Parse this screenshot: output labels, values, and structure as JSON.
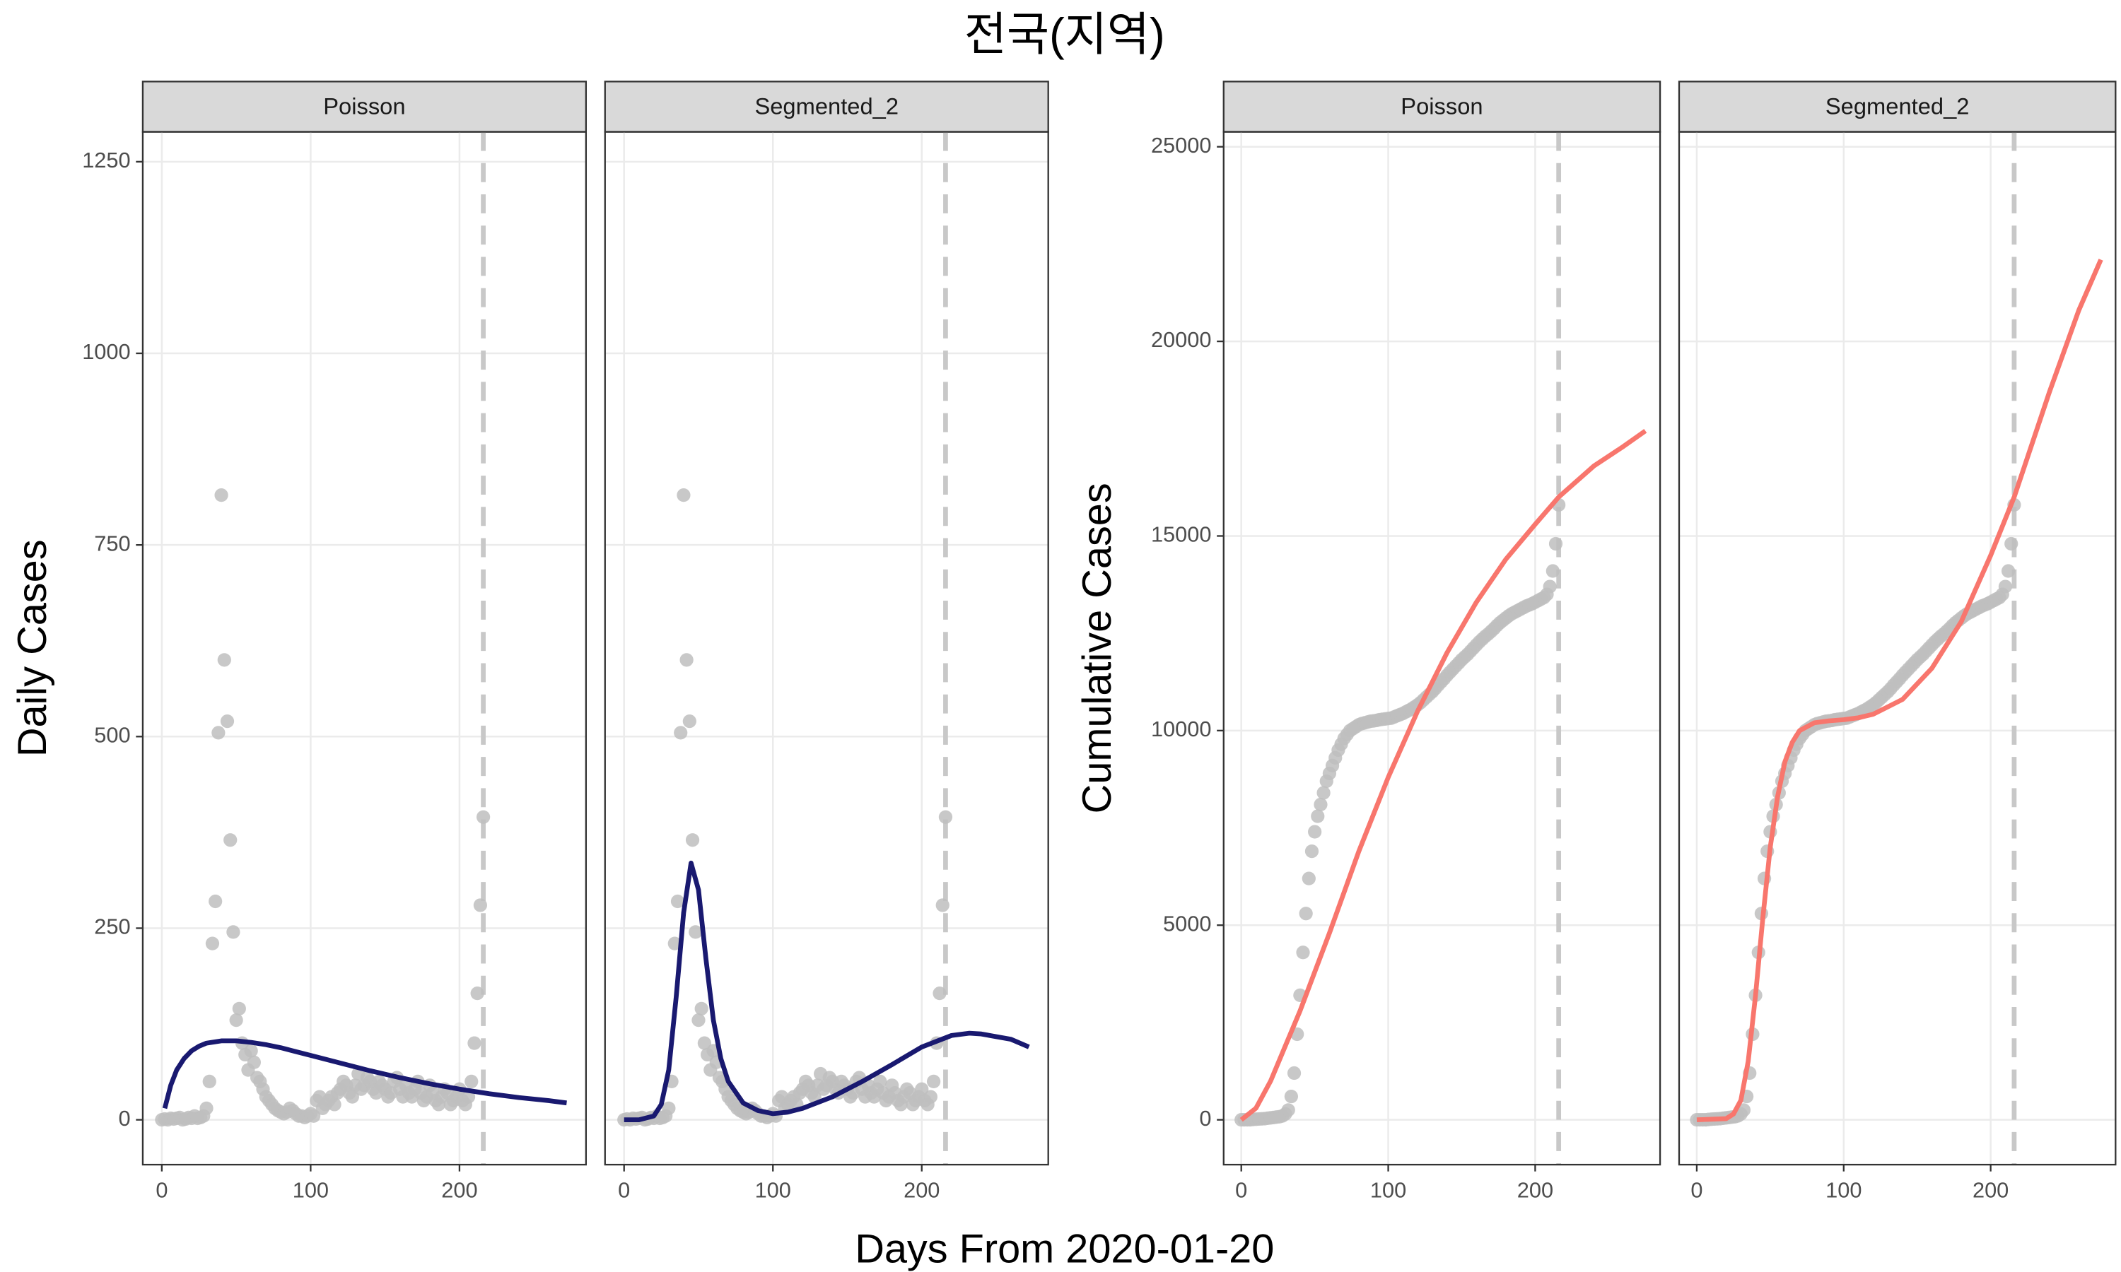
{
  "title": "전국(지역)",
  "xlabel": "Days From 2020-01-20",
  "chart_data": [
    {
      "type": "scatter",
      "strip": "Poisson",
      "ylabel": "Daily Cases",
      "xlim": [
        -12.8,
        285
      ],
      "ylim": [
        -58.5,
        1289
      ],
      "xticks": [
        0,
        100,
        200
      ],
      "yticks": [
        0,
        250,
        500,
        750,
        1000,
        1250
      ],
      "grid": true,
      "vline": 216,
      "points": {
        "color": "#bebebe",
        "x": [
          0,
          2,
          4,
          6,
          8,
          10,
          12,
          14,
          16,
          18,
          20,
          22,
          24,
          26,
          28,
          30,
          32,
          34,
          36,
          38,
          40,
          42,
          44,
          46,
          48,
          50,
          52,
          54,
          56,
          58,
          60,
          62,
          64,
          66,
          68,
          70,
          72,
          74,
          76,
          78,
          80,
          82,
          84,
          86,
          88,
          90,
          92,
          94,
          96,
          98,
          100,
          102,
          104,
          106,
          108,
          110,
          112,
          114,
          116,
          118,
          120,
          122,
          124,
          126,
          128,
          130,
          132,
          134,
          136,
          138,
          140,
          142,
          144,
          146,
          148,
          150,
          152,
          154,
          156,
          158,
          160,
          162,
          164,
          166,
          168,
          170,
          172,
          174,
          176,
          178,
          180,
          182,
          184,
          186,
          188,
          190,
          192,
          194,
          196,
          198,
          200,
          202,
          204,
          206,
          208,
          210,
          212,
          214,
          216
        ],
        "values": [
          0,
          1,
          0,
          2,
          1,
          2,
          3,
          0,
          1,
          3,
          2,
          5,
          2,
          3,
          5,
          15,
          50,
          230,
          285,
          505,
          815,
          600,
          520,
          365,
          245,
          130,
          145,
          100,
          85,
          65,
          90,
          75,
          55,
          50,
          40,
          30,
          25,
          20,
          15,
          12,
          10,
          8,
          10,
          15,
          12,
          8,
          5,
          5,
          3,
          5,
          8,
          5,
          25,
          30,
          15,
          20,
          25,
          30,
          20,
          35,
          40,
          50,
          45,
          35,
          30,
          45,
          60,
          40,
          45,
          55,
          50,
          40,
          35,
          50,
          45,
          40,
          30,
          35,
          50,
          55,
          40,
          30,
          45,
          35,
          30,
          40,
          50,
          35,
          25,
          30,
          45,
          35,
          25,
          20,
          30,
          40,
          35,
          20,
          25,
          30,
          40,
          25,
          20,
          30,
          50,
          100,
          165,
          280,
          395
        ]
      },
      "fit": {
        "color": "#191970",
        "x": [
          2,
          6,
          10,
          15,
          20,
          25,
          30,
          40,
          50,
          60,
          70,
          80,
          90,
          100,
          120,
          140,
          160,
          180,
          200,
          220,
          240,
          260,
          272
        ],
        "values": [
          15,
          45,
          65,
          80,
          90,
          96,
          100,
          103,
          103,
          101,
          98,
          94,
          89,
          84,
          74,
          64,
          55,
          47,
          40,
          34,
          29,
          25,
          22
        ]
      }
    },
    {
      "type": "scatter",
      "strip": "Segmented_2",
      "xlim": [
        -12.8,
        285
      ],
      "ylim": [
        -58.5,
        1289
      ],
      "xticks": [
        0,
        100,
        200
      ],
      "yticks": [
        0,
        250,
        500,
        750,
        1000,
        1250
      ],
      "grid": true,
      "vline": 216,
      "points": {
        "color": "#bebebe",
        "x": [
          0,
          2,
          4,
          6,
          8,
          10,
          12,
          14,
          16,
          18,
          20,
          22,
          24,
          26,
          28,
          30,
          32,
          34,
          36,
          38,
          40,
          42,
          44,
          46,
          48,
          50,
          52,
          54,
          56,
          58,
          60,
          62,
          64,
          66,
          68,
          70,
          72,
          74,
          76,
          78,
          80,
          82,
          84,
          86,
          88,
          90,
          92,
          94,
          96,
          98,
          100,
          102,
          104,
          106,
          108,
          110,
          112,
          114,
          116,
          118,
          120,
          122,
          124,
          126,
          128,
          130,
          132,
          134,
          136,
          138,
          140,
          142,
          144,
          146,
          148,
          150,
          152,
          154,
          156,
          158,
          160,
          162,
          164,
          166,
          168,
          170,
          172,
          174,
          176,
          178,
          180,
          182,
          184,
          186,
          188,
          190,
          192,
          194,
          196,
          198,
          200,
          202,
          204,
          206,
          208,
          210,
          212,
          214,
          216
        ],
        "values": [
          0,
          1,
          0,
          2,
          1,
          2,
          3,
          0,
          1,
          3,
          2,
          5,
          2,
          3,
          5,
          15,
          50,
          230,
          285,
          505,
          815,
          600,
          520,
          365,
          245,
          130,
          145,
          100,
          85,
          65,
          90,
          75,
          55,
          50,
          40,
          30,
          25,
          20,
          15,
          12,
          10,
          8,
          10,
          15,
          12,
          8,
          5,
          5,
          3,
          5,
          8,
          5,
          25,
          30,
          15,
          20,
          25,
          30,
          20,
          35,
          40,
          50,
          45,
          35,
          30,
          45,
          60,
          40,
          45,
          55,
          50,
          40,
          35,
          50,
          45,
          40,
          30,
          35,
          50,
          55,
          40,
          30,
          45,
          35,
          30,
          40,
          50,
          35,
          25,
          30,
          45,
          35,
          25,
          20,
          30,
          40,
          35,
          20,
          25,
          30,
          40,
          25,
          20,
          30,
          50,
          100,
          165,
          280,
          395
        ]
      },
      "fit": {
        "color": "#191970",
        "x": [
          0,
          10,
          20,
          25,
          30,
          35,
          40,
          45,
          50,
          55,
          60,
          65,
          70,
          80,
          90,
          100,
          110,
          120,
          140,
          160,
          180,
          200,
          220,
          232,
          240,
          260,
          272
        ],
        "values": [
          0,
          0,
          5,
          20,
          65,
          160,
          270,
          335,
          300,
          210,
          130,
          80,
          50,
          22,
          12,
          8,
          10,
          15,
          30,
          50,
          72,
          95,
          110,
          113,
          112,
          105,
          95
        ]
      }
    },
    {
      "type": "scatter",
      "strip": "Poisson",
      "ylabel": "Cumulative Cases",
      "xlim": [
        -12,
        285
      ],
      "ylim": [
        -1152,
        25384
      ],
      "xticks": [
        0,
        100,
        200
      ],
      "yticks": [
        0,
        5000,
        10000,
        15000,
        20000,
        25000
      ],
      "grid": true,
      "vline": 216,
      "points": {
        "color": "#bebebe",
        "x": [
          0,
          2,
          4,
          6,
          8,
          10,
          12,
          14,
          16,
          18,
          20,
          22,
          24,
          26,
          28,
          30,
          32,
          34,
          36,
          38,
          40,
          42,
          44,
          46,
          48,
          50,
          52,
          54,
          56,
          58,
          60,
          62,
          64,
          66,
          68,
          70,
          72,
          74,
          76,
          78,
          80,
          82,
          84,
          86,
          88,
          90,
          92,
          94,
          96,
          98,
          100,
          102,
          104,
          106,
          108,
          110,
          112,
          114,
          116,
          118,
          120,
          122,
          124,
          126,
          128,
          130,
          132,
          134,
          136,
          138,
          140,
          142,
          144,
          146,
          148,
          150,
          152,
          154,
          156,
          158,
          160,
          162,
          164,
          166,
          168,
          170,
          172,
          174,
          176,
          178,
          180,
          182,
          184,
          186,
          188,
          190,
          192,
          194,
          196,
          198,
          200,
          202,
          204,
          206,
          208,
          210,
          212,
          214,
          216
        ],
        "values": [
          0,
          0,
          0,
          0,
          10,
          15,
          20,
          25,
          30,
          40,
          50,
          60,
          70,
          80,
          100,
          150,
          250,
          600,
          1200,
          2200,
          3200,
          4300,
          5300,
          6200,
          6900,
          7400,
          7800,
          8100,
          8400,
          8700,
          8900,
          9100,
          9300,
          9500,
          9650,
          9800,
          9900,
          10000,
          10050,
          10100,
          10150,
          10180,
          10200,
          10220,
          10240,
          10250,
          10260,
          10280,
          10290,
          10300,
          10310,
          10320,
          10350,
          10380,
          10410,
          10440,
          10480,
          10520,
          10560,
          10610,
          10660,
          10720,
          10790,
          10860,
          10930,
          11000,
          11080,
          11170,
          11250,
          11330,
          11420,
          11500,
          11580,
          11660,
          11740,
          11820,
          11890,
          11960,
          12040,
          12120,
          12200,
          12280,
          12350,
          12420,
          12480,
          12550,
          12620,
          12700,
          12770,
          12830,
          12890,
          12950,
          13000,
          13040,
          13080,
          13120,
          13160,
          13200,
          13230,
          13260,
          13300,
          13340,
          13380,
          13420,
          13500,
          13700,
          14100,
          14800,
          15800
        ]
      },
      "fit": {
        "color": "#f8766d",
        "x": [
          0,
          10,
          20,
          30,
          40,
          50,
          60,
          80,
          100,
          120,
          140,
          160,
          180,
          200,
          216,
          240,
          260,
          275
        ],
        "values": [
          0,
          300,
          1000,
          1900,
          2800,
          3800,
          4800,
          6900,
          8800,
          10500,
          12000,
          13300,
          14400,
          15300,
          16000,
          16800,
          17300,
          17700
        ]
      }
    },
    {
      "type": "scatter",
      "strip": "Segmented_2",
      "xlim": [
        -12,
        285
      ],
      "ylim": [
        -1152,
        25384
      ],
      "xticks": [
        0,
        100,
        200
      ],
      "yticks": [
        0,
        5000,
        10000,
        15000,
        20000,
        25000
      ],
      "grid": true,
      "vline": 216,
      "points": {
        "color": "#bebebe",
        "x": [
          0,
          2,
          4,
          6,
          8,
          10,
          12,
          14,
          16,
          18,
          20,
          22,
          24,
          26,
          28,
          30,
          32,
          34,
          36,
          38,
          40,
          42,
          44,
          46,
          48,
          50,
          52,
          54,
          56,
          58,
          60,
          62,
          64,
          66,
          68,
          70,
          72,
          74,
          76,
          78,
          80,
          82,
          84,
          86,
          88,
          90,
          92,
          94,
          96,
          98,
          100,
          102,
          104,
          106,
          108,
          110,
          112,
          114,
          116,
          118,
          120,
          122,
          124,
          126,
          128,
          130,
          132,
          134,
          136,
          138,
          140,
          142,
          144,
          146,
          148,
          150,
          152,
          154,
          156,
          158,
          160,
          162,
          164,
          166,
          168,
          170,
          172,
          174,
          176,
          178,
          180,
          182,
          184,
          186,
          188,
          190,
          192,
          194,
          196,
          198,
          200,
          202,
          204,
          206,
          208,
          210,
          212,
          214,
          216
        ],
        "values": [
          0,
          0,
          0,
          0,
          10,
          15,
          20,
          25,
          30,
          40,
          50,
          60,
          70,
          80,
          100,
          150,
          250,
          600,
          1200,
          2200,
          3200,
          4300,
          5300,
          6200,
          6900,
          7400,
          7800,
          8100,
          8400,
          8700,
          8900,
          9100,
          9300,
          9500,
          9650,
          9800,
          9900,
          10000,
          10050,
          10100,
          10150,
          10180,
          10200,
          10220,
          10240,
          10250,
          10260,
          10280,
          10290,
          10300,
          10310,
          10320,
          10350,
          10380,
          10410,
          10440,
          10480,
          10520,
          10560,
          10610,
          10660,
          10720,
          10790,
          10860,
          10930,
          11000,
          11080,
          11170,
          11250,
          11330,
          11420,
          11500,
          11580,
          11660,
          11740,
          11820,
          11890,
          11960,
          12040,
          12120,
          12200,
          12280,
          12350,
          12420,
          12480,
          12550,
          12620,
          12700,
          12770,
          12830,
          12890,
          12950,
          13000,
          13040,
          13080,
          13120,
          13160,
          13200,
          13230,
          13260,
          13300,
          13340,
          13380,
          13420,
          13500,
          13700,
          14100,
          14800,
          15800
        ]
      },
      "fit": {
        "color": "#f8766d",
        "x": [
          0,
          20,
          25,
          30,
          35,
          40,
          45,
          50,
          55,
          60,
          65,
          70,
          80,
          90,
          100,
          110,
          120,
          140,
          160,
          180,
          200,
          216,
          240,
          260,
          275
        ],
        "values": [
          0,
          30,
          150,
          500,
          1500,
          3200,
          5200,
          7000,
          8300,
          9200,
          9700,
          10000,
          10200,
          10250,
          10280,
          10330,
          10420,
          10800,
          11600,
          12800,
          14500,
          16000,
          18700,
          20800,
          22100
        ]
      }
    }
  ]
}
